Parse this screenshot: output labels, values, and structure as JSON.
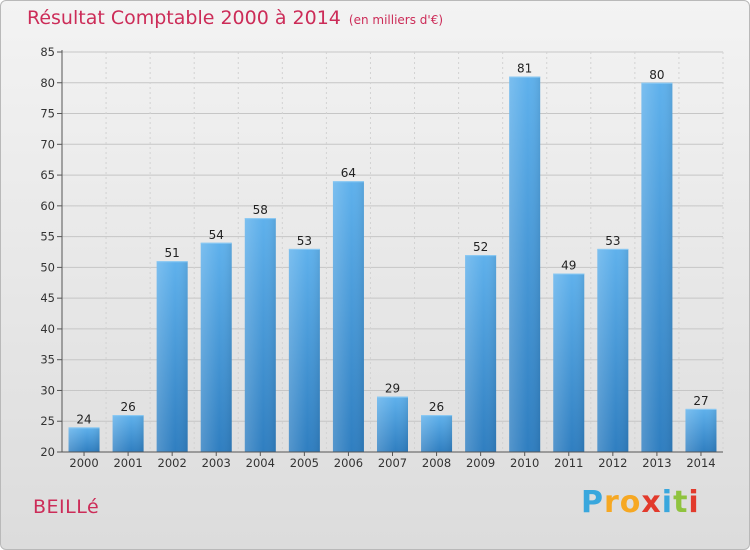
{
  "header": {
    "title": "Résultat Comptable 2000 à 2014",
    "subtitle": "(en milliers d'€)"
  },
  "commune": "BEILLé",
  "logo": {
    "letters": [
      "P",
      "r",
      "o",
      "x",
      "i",
      "t",
      "i"
    ],
    "colors": [
      "#39a7dd",
      "#f6a823",
      "#f6a823",
      "#e23a2c",
      "#39a7dd",
      "#8fc33e",
      "#e23a2c"
    ]
  },
  "colors": {
    "bar_light": "#5fb1ec",
    "bar_dark": "#2f7ec0",
    "title": "#cc2c58"
  },
  "chart_data": {
    "type": "bar",
    "title": "Résultat Comptable 2000 à 2014",
    "xlabel": "",
    "ylabel": "",
    "categories": [
      "2000",
      "2001",
      "2002",
      "2003",
      "2004",
      "2005",
      "2006",
      "2007",
      "2008",
      "2009",
      "2010",
      "2011",
      "2012",
      "2013",
      "2014"
    ],
    "values": [
      24,
      26,
      51,
      54,
      58,
      53,
      64,
      29,
      26,
      52,
      81,
      49,
      53,
      80,
      27
    ],
    "ylim": [
      20,
      85
    ],
    "yticks": [
      20,
      25,
      30,
      35,
      40,
      45,
      50,
      55,
      60,
      65,
      70,
      75,
      80,
      85
    ],
    "grid": true
  }
}
